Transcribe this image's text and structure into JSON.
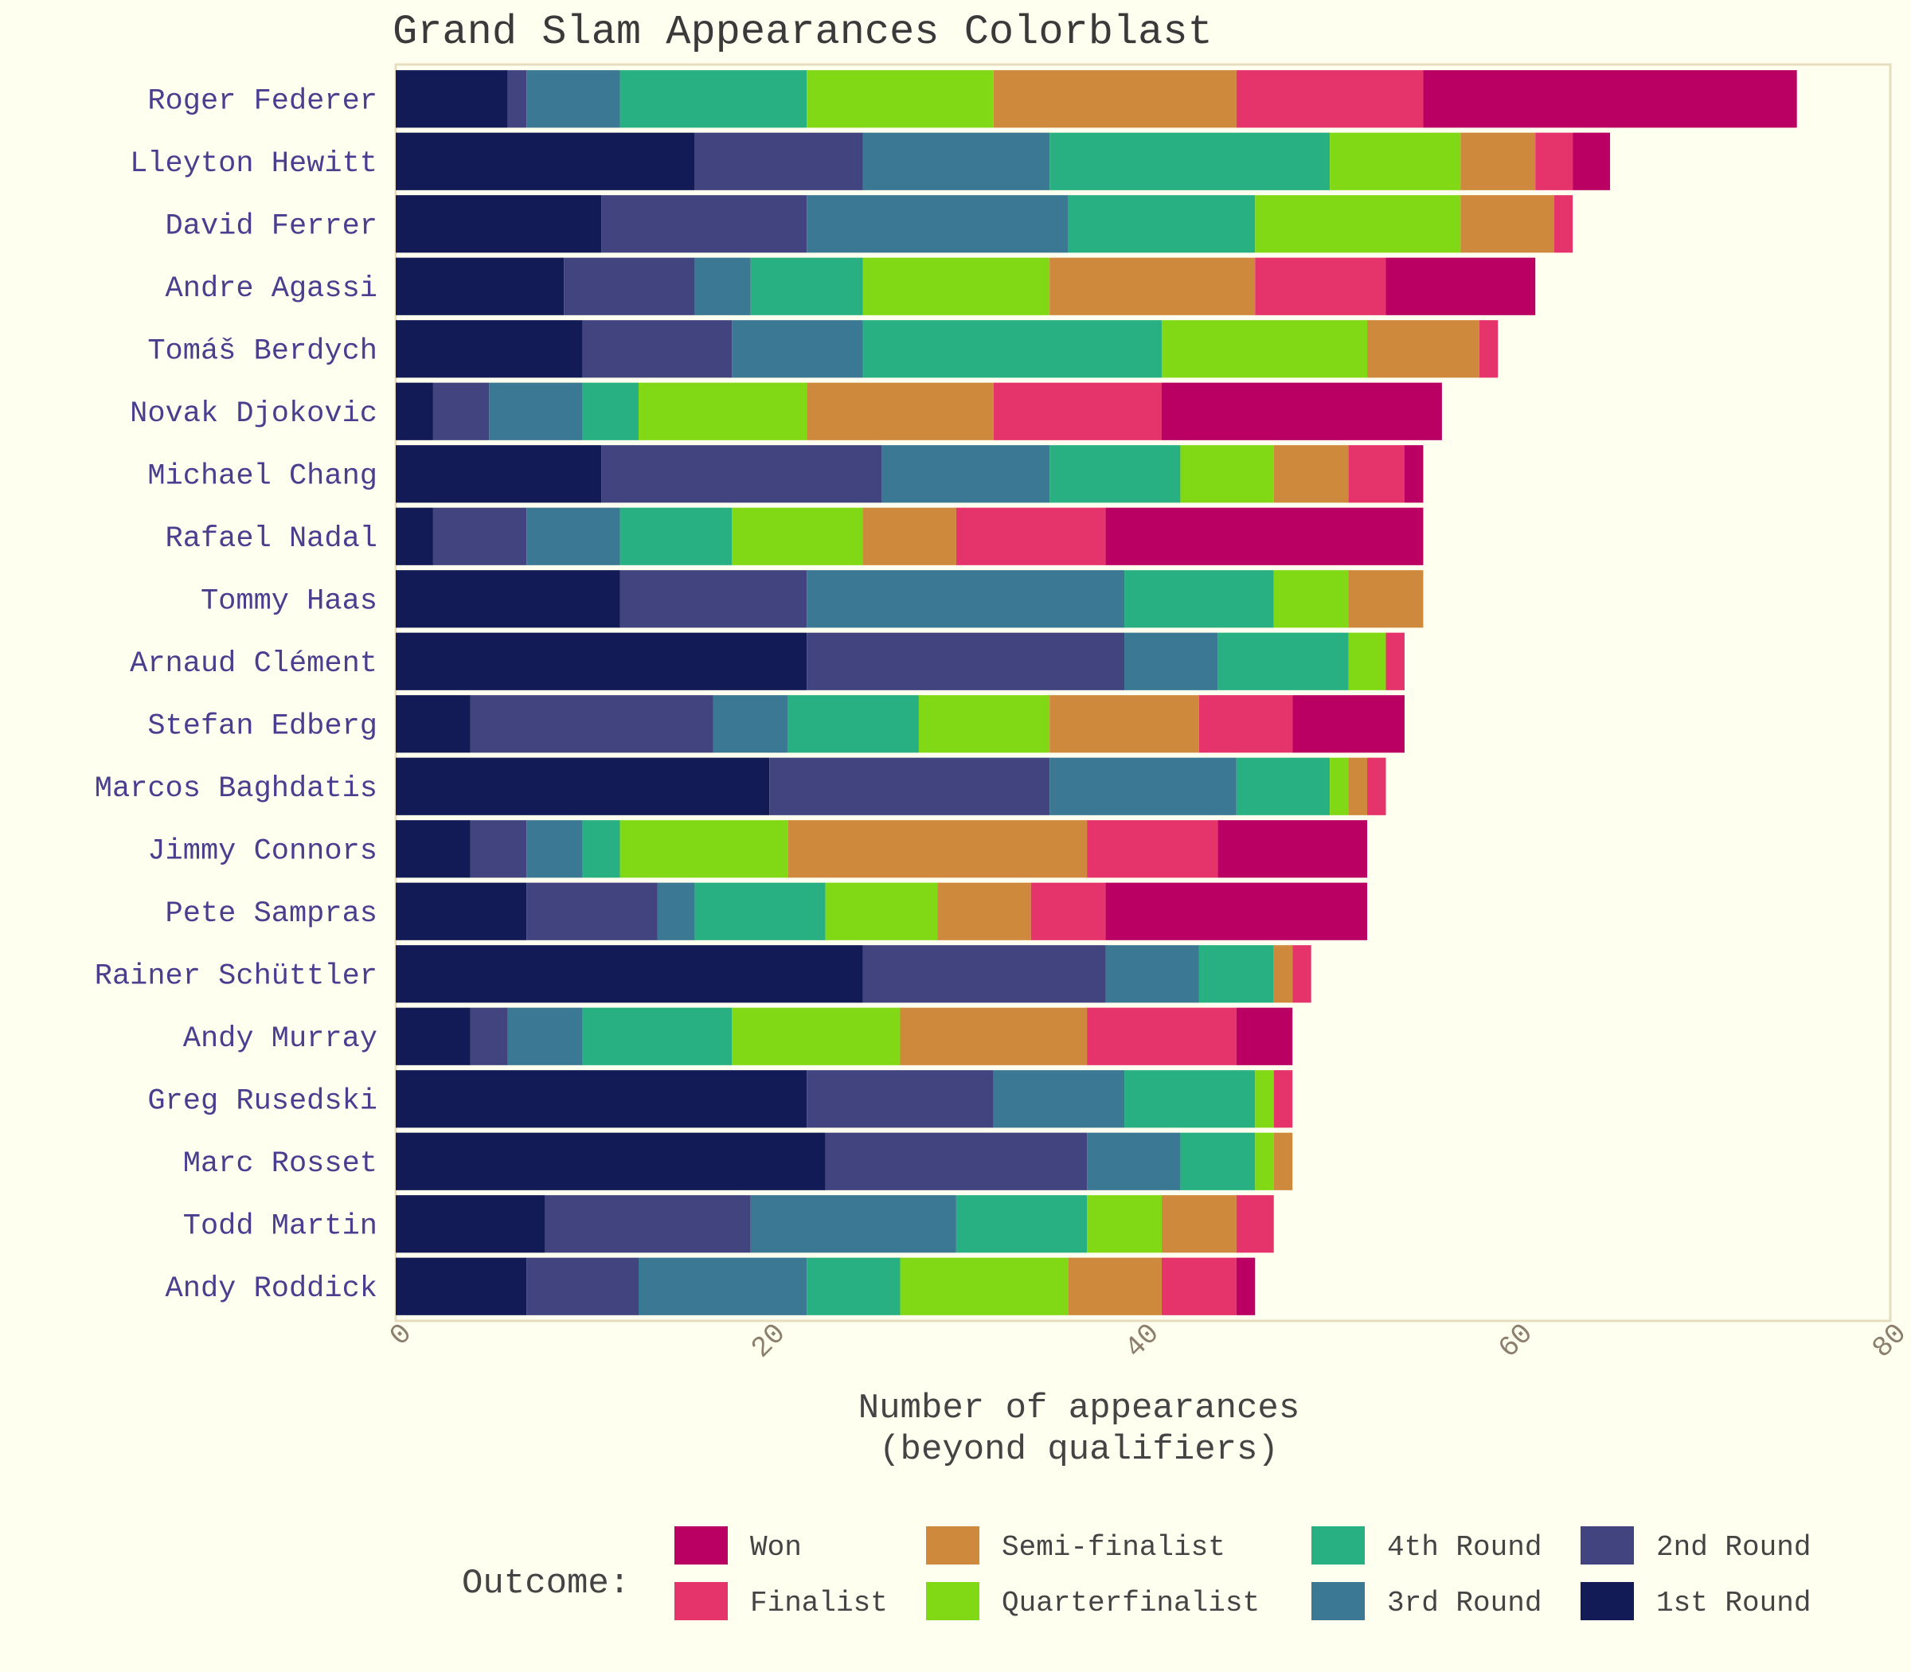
{
  "chart_data": {
    "type": "bar",
    "orientation": "horizontal",
    "stacked": true,
    "title": "Grand Slam Appearances Colorblast",
    "xlabel": [
      "Number of appearances",
      "(beyond qualifiers)"
    ],
    "ylabel": "",
    "xlim": [
      0,
      80
    ],
    "xticks": [
      0,
      20,
      40,
      60,
      80
    ],
    "grid": false,
    "legend": {
      "title": "Outcome:",
      "position": "bottom"
    },
    "categories": [
      "Roger Federer",
      "Lleyton Hewitt",
      "David Ferrer",
      "Andre Agassi",
      "Tomáš Berdych",
      "Novak Djokovic",
      "Michael Chang",
      "Rafael Nadal",
      "Tommy Haas",
      "Arnaud Clément",
      "Stefan Edberg",
      "Marcos Baghdatis",
      "Jimmy Connors",
      "Pete Sampras",
      "Rainer Schüttler",
      "Andy Murray",
      "Greg Rusedski",
      "Marc Rosset",
      "Todd Martin",
      "Andy Roddick"
    ],
    "series": [
      {
        "name": "1st Round",
        "color": "#131b56",
        "values": [
          6,
          16,
          11,
          9,
          10,
          2,
          11,
          2,
          12,
          22,
          4,
          20,
          4,
          7,
          25,
          4,
          22,
          23,
          8,
          7
        ]
      },
      {
        "name": "2nd Round",
        "color": "#41447e",
        "values": [
          1,
          9,
          11,
          7,
          8,
          3,
          15,
          5,
          10,
          17,
          13,
          15,
          3,
          7,
          13,
          2,
          10,
          14,
          11,
          6
        ]
      },
      {
        "name": "3rd Round",
        "color": "#3b7893",
        "values": [
          5,
          10,
          14,
          3,
          7,
          5,
          9,
          5,
          17,
          5,
          4,
          10,
          3,
          2,
          5,
          4,
          7,
          5,
          11,
          9
        ]
      },
      {
        "name": "4th Round",
        "color": "#28b083",
        "values": [
          10,
          15,
          10,
          6,
          16,
          3,
          7,
          6,
          8,
          7,
          7,
          5,
          2,
          7,
          4,
          8,
          7,
          4,
          7,
          5
        ]
      },
      {
        "name": "Quarterfinalist",
        "color": "#80d914",
        "values": [
          10,
          7,
          11,
          10,
          11,
          9,
          5,
          7,
          4,
          2,
          7,
          1,
          9,
          6,
          0,
          9,
          1,
          1,
          4,
          9
        ]
      },
      {
        "name": "Semi-finalist",
        "color": "#cf893c",
        "values": [
          13,
          4,
          5,
          11,
          6,
          10,
          4,
          5,
          4,
          0,
          8,
          1,
          16,
          5,
          1,
          10,
          0,
          1,
          4,
          5
        ]
      },
      {
        "name": "Finalist",
        "color": "#e5336c",
        "values": [
          10,
          2,
          1,
          7,
          1,
          9,
          3,
          8,
          0,
          1,
          5,
          1,
          7,
          4,
          1,
          8,
          1,
          0,
          2,
          4
        ]
      },
      {
        "name": "Won",
        "color": "#bb0064",
        "values": [
          20,
          2,
          0,
          8,
          0,
          15,
          1,
          17,
          0,
          0,
          6,
          0,
          8,
          14,
          0,
          3,
          0,
          0,
          0,
          1
        ]
      }
    ],
    "legend_order": [
      "Won",
      "Finalist",
      "Semi-finalist",
      "Quarterfinalist",
      "4th Round",
      "3rd Round",
      "2nd Round",
      "1st Round"
    ]
  }
}
